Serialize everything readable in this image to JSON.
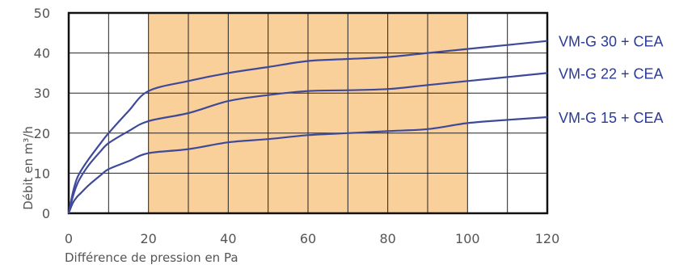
{
  "chart_data": {
    "type": "line",
    "title": "",
    "xlabel": "Différence de pression en Pa",
    "ylabel": "Débit en m³/h",
    "xlim": [
      0,
      120
    ],
    "ylim": [
      0,
      50
    ],
    "x_ticks": [
      "0",
      "20",
      "40",
      "60",
      "80",
      "100",
      "120"
    ],
    "y_ticks": [
      "0",
      "10",
      "20",
      "30",
      "40",
      "50"
    ],
    "grid": true,
    "legend": "right, labels at line ends",
    "highlight_band": {
      "x_from": 20,
      "x_to": 100,
      "color": "#f9cf9a"
    },
    "line_color": "#3e4a99",
    "label_color": "#2a3a9a",
    "series": [
      {
        "name": "VM-G 30 + CEA",
        "points": [
          [
            0,
            0
          ],
          [
            1,
            5
          ],
          [
            2,
            8.5
          ],
          [
            3,
            10.5
          ],
          [
            5,
            13.5
          ],
          [
            8,
            17.5
          ],
          [
            10,
            20
          ],
          [
            15,
            25.5
          ],
          [
            20,
            30.5
          ],
          [
            30,
            33
          ],
          [
            40,
            35
          ],
          [
            50,
            36.5
          ],
          [
            60,
            38
          ],
          [
            70,
            38.5
          ],
          [
            80,
            39
          ],
          [
            90,
            40
          ],
          [
            100,
            41
          ],
          [
            110,
            42
          ],
          [
            120,
            43
          ]
        ]
      },
      {
        "name": "VM-G 22 + CEA",
        "points": [
          [
            0,
            0
          ],
          [
            1,
            4
          ],
          [
            2,
            7
          ],
          [
            3,
            9
          ],
          [
            5,
            12
          ],
          [
            8,
            15.5
          ],
          [
            10,
            17.5
          ],
          [
            15,
            20.5
          ],
          [
            20,
            23
          ],
          [
            30,
            25
          ],
          [
            40,
            28
          ],
          [
            50,
            29.5
          ],
          [
            60,
            30.5
          ],
          [
            70,
            30.7
          ],
          [
            80,
            31
          ],
          [
            90,
            32
          ],
          [
            100,
            33
          ],
          [
            110,
            34
          ],
          [
            120,
            35
          ]
        ]
      },
      {
        "name": "VM-G 15 + CEA",
        "points": [
          [
            0,
            0
          ],
          [
            1,
            2.5
          ],
          [
            2,
            4
          ],
          [
            3,
            5
          ],
          [
            5,
            7
          ],
          [
            8,
            9.5
          ],
          [
            10,
            11
          ],
          [
            15,
            13
          ],
          [
            20,
            15
          ],
          [
            30,
            16
          ],
          [
            40,
            17.7
          ],
          [
            50,
            18.5
          ],
          [
            60,
            19.5
          ],
          [
            70,
            20
          ],
          [
            80,
            20.5
          ],
          [
            90,
            21
          ],
          [
            100,
            22.5
          ],
          [
            110,
            23.3
          ],
          [
            120,
            24
          ]
        ]
      }
    ]
  }
}
